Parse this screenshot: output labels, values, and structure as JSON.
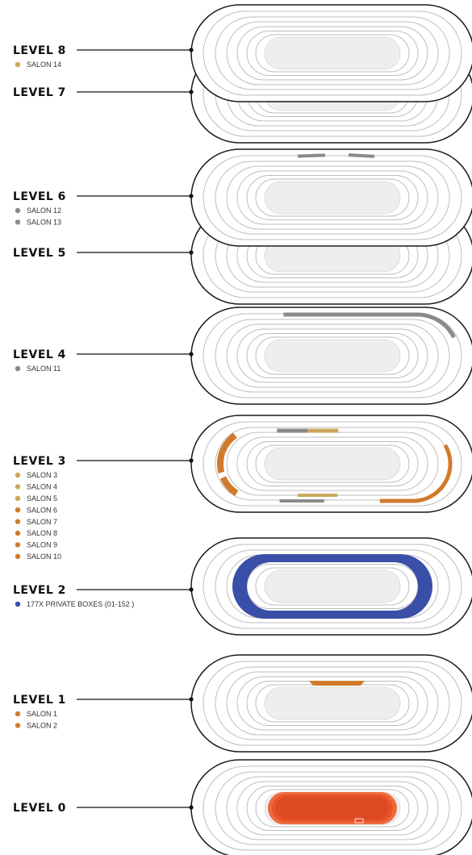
{
  "colors": {
    "gold": "#c9a95a",
    "gray": "#8a8a8a",
    "orange": "#d07b2c",
    "blue": "#3a4fa8",
    "red": "#e8532a",
    "ring": "#bdbdbd",
    "outline": "#1a1a1a",
    "field": "#f0eded"
  },
  "levels": [
    {
      "id": "8",
      "title": "LEVEL 8",
      "legend": [
        {
          "label": "SALON 14",
          "color": "gold"
        }
      ]
    },
    {
      "id": "7",
      "title": "LEVEL 7",
      "legend": []
    },
    {
      "id": "6",
      "title": "LEVEL 6",
      "legend": [
        {
          "label": "SALON 12",
          "color": "gray"
        },
        {
          "label": "SALON 13",
          "color": "gray"
        }
      ]
    },
    {
      "id": "5",
      "title": "LEVEL 5",
      "legend": []
    },
    {
      "id": "4",
      "title": "LEVEL 4",
      "legend": [
        {
          "label": "SALON 11",
          "color": "gray"
        }
      ]
    },
    {
      "id": "3",
      "title": "LEVEL 3",
      "legend": [
        {
          "label": "SALON 3",
          "color": "gold"
        },
        {
          "label": "SALON 4",
          "color": "gold"
        },
        {
          "label": "SALON 5",
          "color": "gold"
        },
        {
          "label": "SALON 6",
          "color": "orange"
        },
        {
          "label": "SALON 7",
          "color": "orange"
        },
        {
          "label": "SALON 8",
          "color": "orange"
        },
        {
          "label": "SALON 9",
          "color": "orange"
        },
        {
          "label": "SALON 10",
          "color": "orange"
        }
      ]
    },
    {
      "id": "2",
      "title": "LEVEL 2",
      "legend": [
        {
          "label": "177X PRIVATE BOXES (01-152 )",
          "color": "blue"
        }
      ]
    },
    {
      "id": "1",
      "title": "LEVEL 1",
      "legend": [
        {
          "label": "SALON 1",
          "color": "orange"
        },
        {
          "label": "SALON 2",
          "color": "orange"
        }
      ]
    },
    {
      "id": "0",
      "title": "LEVEL 0",
      "legend": []
    }
  ]
}
